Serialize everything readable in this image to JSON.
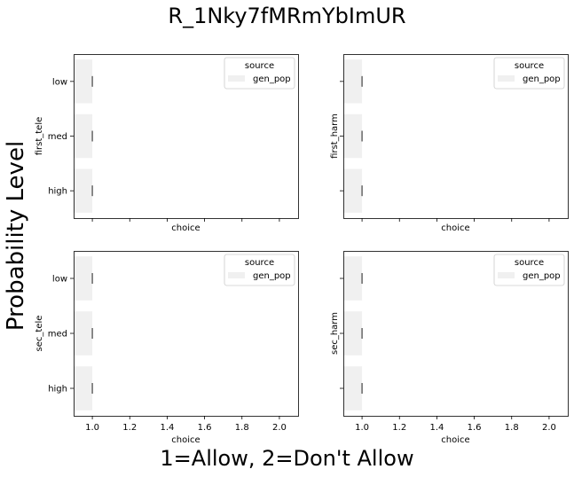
{
  "figure": {
    "title": "R_1Nky7fMRmYbImUR",
    "ylabel": "Probability Level",
    "xlabel": "1=Allow, 2=Don't Allow"
  },
  "colors": {
    "bar": "#f0f0f0",
    "axis": "#000000",
    "errbar": "#424242"
  },
  "chart_data": [
    {
      "type": "bar",
      "orientation": "horizontal",
      "ylabel": "first_tele",
      "xlabel": "choice",
      "categories": [
        "low",
        "med",
        "high"
      ],
      "series": [
        {
          "name": "gen_pop",
          "values": [
            1.0,
            1.0,
            1.0
          ]
        }
      ],
      "xlim": [
        0.9,
        2.1
      ],
      "xticks": [
        "1.0",
        "1.2",
        "1.4",
        "1.6",
        "1.8",
        "2.0"
      ],
      "show_xtick_labels": false,
      "show_ytick_labels": true,
      "legend": {
        "title": "source",
        "placement": "top-right"
      },
      "grid": false
    },
    {
      "type": "bar",
      "orientation": "horizontal",
      "ylabel": "first_harm",
      "xlabel": "choice",
      "categories": [
        "low",
        "med",
        "high"
      ],
      "series": [
        {
          "name": "gen_pop",
          "values": [
            1.0,
            1.0,
            1.0
          ]
        }
      ],
      "xlim": [
        0.9,
        2.1
      ],
      "xticks": [
        "1.0",
        "1.2",
        "1.4",
        "1.6",
        "1.8",
        "2.0"
      ],
      "show_xtick_labels": false,
      "show_ytick_labels": false,
      "legend": {
        "title": "source",
        "placement": "top-right"
      },
      "grid": false
    },
    {
      "type": "bar",
      "orientation": "horizontal",
      "ylabel": "sec_tele",
      "xlabel": "choice",
      "categories": [
        "low",
        "med",
        "high"
      ],
      "series": [
        {
          "name": "gen_pop",
          "values": [
            1.0,
            1.0,
            1.0
          ]
        }
      ],
      "xlim": [
        0.9,
        2.1
      ],
      "xticks": [
        "1.0",
        "1.2",
        "1.4",
        "1.6",
        "1.8",
        "2.0"
      ],
      "show_xtick_labels": true,
      "show_ytick_labels": true,
      "legend": {
        "title": "source",
        "placement": "top-right"
      },
      "grid": false
    },
    {
      "type": "bar",
      "orientation": "horizontal",
      "ylabel": "sec_harm",
      "xlabel": "choice",
      "categories": [
        "low",
        "med",
        "high"
      ],
      "series": [
        {
          "name": "gen_pop",
          "values": [
            1.0,
            1.0,
            1.0
          ]
        }
      ],
      "xlim": [
        0.9,
        2.1
      ],
      "xticks": [
        "1.0",
        "1.2",
        "1.4",
        "1.6",
        "1.8",
        "2.0"
      ],
      "show_xtick_labels": true,
      "show_ytick_labels": false,
      "legend": {
        "title": "source",
        "placement": "top-right"
      },
      "grid": false
    }
  ]
}
